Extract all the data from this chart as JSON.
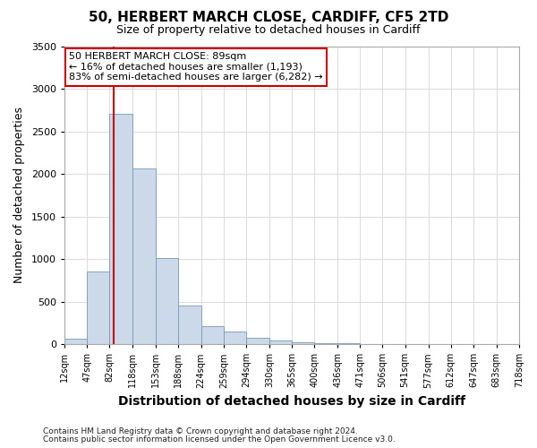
{
  "title": "50, HERBERT MARCH CLOSE, CARDIFF, CF5 2TD",
  "subtitle": "Size of property relative to detached houses in Cardiff",
  "xlabel": "Distribution of detached houses by size in Cardiff",
  "ylabel": "Number of detached properties",
  "bar_color": "#ccd9e8",
  "bar_edge_color": "#7799bb",
  "bg_color": "#ffffff",
  "plot_bg_color": "#ffffff",
  "grid_color": "#dddddd",
  "vline_color": "#cc0000",
  "vline_x": 89,
  "annotation_text": "50 HERBERT MARCH CLOSE: 89sqm\n← 16% of detached houses are smaller (1,193)\n83% of semi-detached houses are larger (6,282) →",
  "annotation_box_color": "#ffffff",
  "annotation_box_edge": "#cc0000",
  "bin_edges": [
    12,
    47,
    82,
    118,
    153,
    188,
    224,
    259,
    294,
    330,
    365,
    400,
    436,
    471,
    506,
    541,
    577,
    612,
    647,
    683,
    718
  ],
  "bar_heights": [
    60,
    850,
    2710,
    2060,
    1010,
    450,
    210,
    150,
    75,
    40,
    20,
    15,
    10,
    5,
    0,
    0,
    0,
    0,
    0,
    0
  ],
  "ylim": [
    0,
    3500
  ],
  "yticks": [
    0,
    500,
    1000,
    1500,
    2000,
    2500,
    3000,
    3500
  ],
  "footnote1": "Contains HM Land Registry data © Crown copyright and database right 2024.",
  "footnote2": "Contains public sector information licensed under the Open Government Licence v3.0."
}
